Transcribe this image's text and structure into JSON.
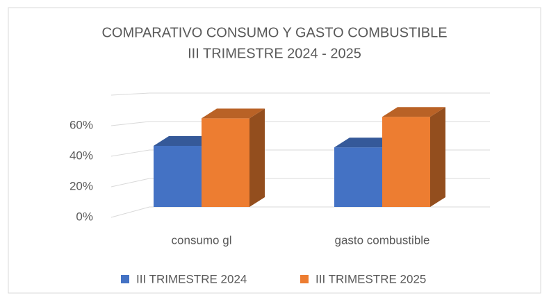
{
  "chart_data": {
    "type": "bar3d",
    "title": "COMPARATIVO CONSUMO Y GASTO COMBUSTIBLE",
    "subtitle": "III TRIMESTRE 2024 - 2025",
    "categories": [
      "consumo gl",
      "gasto combustible"
    ],
    "series": [
      {
        "name": "III TRIMESTRE 2024",
        "color": "#4472c4",
        "values": [
          40,
          39
        ]
      },
      {
        "name": "III TRIMESTRE 2025",
        "color": "#ed7d31",
        "values": [
          58,
          59
        ]
      }
    ],
    "ylim": [
      0,
      80
    ],
    "yticks": [
      {
        "value": 0,
        "label": "0%"
      },
      {
        "value": 20,
        "label": "20%"
      },
      {
        "value": 40,
        "label": "40%"
      },
      {
        "value": 60,
        "label": "60%"
      }
    ],
    "grid": true,
    "legend": "bottom"
  }
}
